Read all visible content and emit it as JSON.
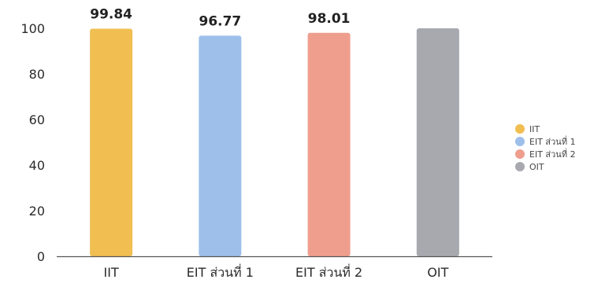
{
  "chart_data": {
    "type": "bar",
    "categories": [
      "IIT",
      "EIT ส่วนที่ 1",
      "EIT ส่วนที่ 2",
      "OIT"
    ],
    "values": [
      99.84,
      96.77,
      98.01,
      100
    ],
    "data_labels": [
      "99.84",
      "96.77",
      "98.01",
      ""
    ],
    "colors": [
      "#f1be52",
      "#9dbfe9",
      "#ef9e8d",
      "#a7a9ae"
    ],
    "ylim": [
      0,
      100
    ],
    "yticks": [
      "0",
      "20",
      "40",
      "60",
      "80",
      "100"
    ],
    "grid": false,
    "legend_position": "right",
    "legend": [
      "IIT",
      "EIT ส่วนที่ 1",
      "EIT ส่วนที่ 2",
      "OIT"
    ],
    "title": "",
    "xlabel": "",
    "ylabel": ""
  }
}
